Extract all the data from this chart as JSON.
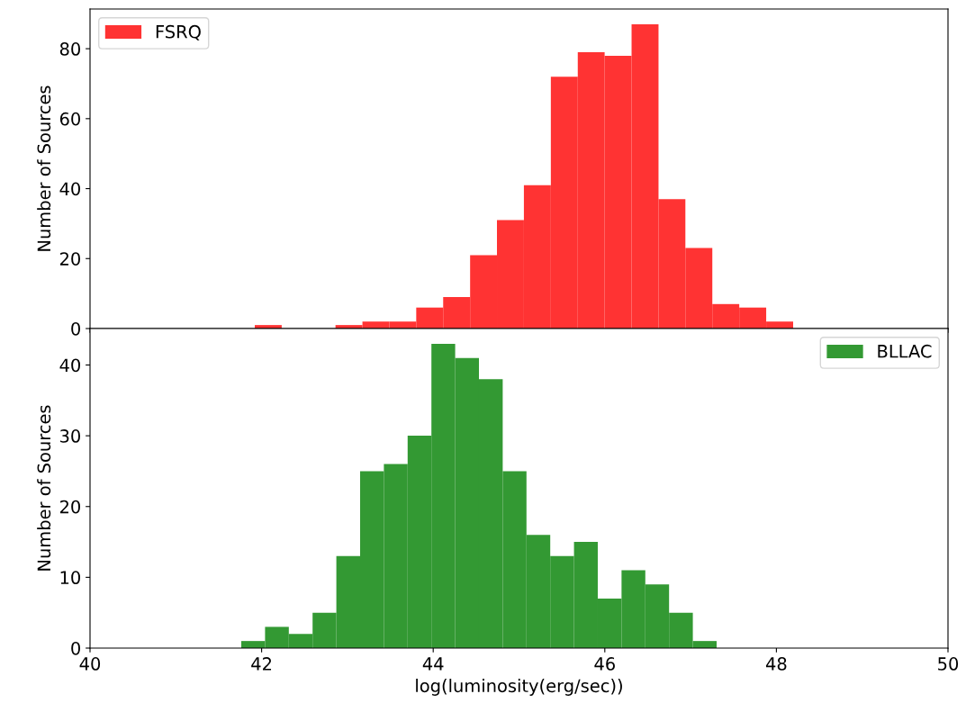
{
  "chart_data": [
    {
      "type": "histogram",
      "ylabel": "Number of Sources",
      "legend": "top left",
      "tick_labels": "y",
      "xlim": [
        40,
        50
      ],
      "xticks": [
        40,
        42,
        44,
        46,
        48,
        50
      ],
      "ylim": [
        0,
        91.35
      ],
      "yticks": [
        0,
        20,
        40,
        60,
        80
      ],
      "bins": [
        41.92,
        42.234,
        42.547,
        42.861,
        43.175,
        43.489,
        43.802,
        44.116,
        44.43,
        44.743,
        45.057,
        45.371,
        45.685,
        45.998,
        46.312,
        46.626,
        46.939,
        47.253,
        47.567,
        47.881,
        48.195
      ],
      "series": [
        {
          "name": "FSRQ",
          "color": "#ff3333",
          "values": [
            1,
            0,
            0,
            1,
            2,
            2,
            6,
            9,
            21,
            31,
            41,
            72,
            79,
            78,
            87,
            37,
            23,
            7,
            6,
            2
          ]
        }
      ]
    },
    {
      "type": "histogram",
      "xlabel": "log(luminosity(erg/sec))",
      "ylabel": "Number of Sources",
      "legend": "top right",
      "xlim": [
        40,
        50
      ],
      "xticks": [
        40,
        42,
        44,
        46,
        48,
        50
      ],
      "ylim": [
        0,
        45.15
      ],
      "yticks": [
        0,
        10,
        20,
        30,
        40
      ],
      "bins": [
        41.763,
        42.04,
        42.317,
        42.594,
        42.871,
        43.148,
        43.425,
        43.702,
        43.979,
        44.256,
        44.533,
        44.81,
        45.087,
        45.364,
        45.641,
        45.918,
        46.195,
        46.472,
        46.749,
        47.026,
        47.303
      ],
      "series": [
        {
          "name": "BLLAC",
          "color": "#339933",
          "values": [
            1,
            3,
            2,
            5,
            13,
            25,
            26,
            30,
            43,
            41,
            38,
            25,
            16,
            13,
            15,
            7,
            11,
            9,
            5,
            1
          ]
        }
      ]
    }
  ]
}
